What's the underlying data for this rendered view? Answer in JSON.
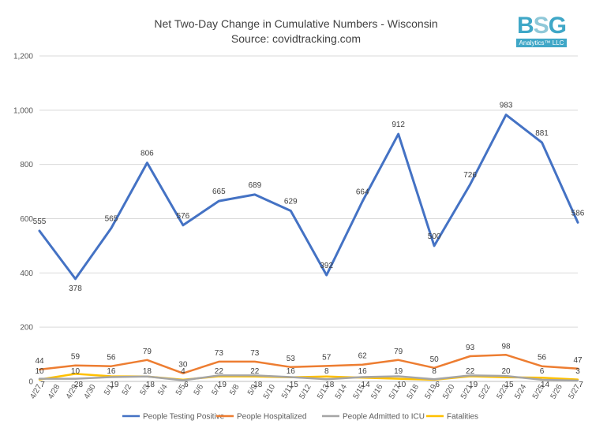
{
  "chart_data": {
    "type": "line",
    "title": "Net Two-Day Change in Cumulative Numbers - Wisconsin",
    "subtitle": "Source: covidtracking.com",
    "logo": {
      "letters": [
        "B",
        "S",
        "G"
      ],
      "letter_colors": [
        "#3fa7c7",
        "#8fc8d8",
        "#3fa7c7"
      ],
      "subtext": "Analytics™ LLC"
    },
    "categories": [
      "4/27",
      "4/28",
      "4/29",
      "4/30",
      "5/1",
      "5/2",
      "5/3",
      "5/4",
      "5/5",
      "5/6",
      "5/7",
      "5/8",
      "5/9",
      "5/10",
      "5/11",
      "5/12",
      "5/13",
      "5/14",
      "5/15",
      "5/16",
      "5/17",
      "5/18",
      "5/19",
      "5/20",
      "5/21",
      "5/22",
      "5/23",
      "5/24",
      "5/25",
      "5/26",
      "5/27"
    ],
    "ylim": [
      0,
      1200
    ],
    "yticks": [
      0,
      200,
      400,
      600,
      800,
      1000,
      1200
    ],
    "ytick_labels": [
      "0",
      "200",
      "400",
      "600",
      "800",
      "1,000",
      "1,200"
    ],
    "grid": true,
    "legend_position": "bottom",
    "series": [
      {
        "name": "People Testing Positive",
        "color": "#4472c4",
        "points": [
          {
            "x": "4/27",
            "y": 555,
            "label": "555"
          },
          {
            "x": "4/29",
            "y": 378,
            "label": "378"
          },
          {
            "x": "5/1",
            "y": 565,
            "label": "565"
          },
          {
            "x": "5/3",
            "y": 806,
            "label": "806"
          },
          {
            "x": "5/5",
            "y": 576,
            "label": "576"
          },
          {
            "x": "5/7",
            "y": 665,
            "label": "665"
          },
          {
            "x": "5/9",
            "y": 689,
            "label": "689"
          },
          {
            "x": "5/11",
            "y": 629,
            "label": "629"
          },
          {
            "x": "5/13",
            "y": 392,
            "label": "392"
          },
          {
            "x": "5/15",
            "y": 664,
            "label": "664"
          },
          {
            "x": "5/17",
            "y": 912,
            "label": "912"
          },
          {
            "x": "5/19",
            "y": 500,
            "label": "500"
          },
          {
            "x": "5/21",
            "y": 726,
            "label": "726"
          },
          {
            "x": "5/23",
            "y": 983,
            "label": "983"
          },
          {
            "x": "5/25",
            "y": 881,
            "label": "881"
          },
          {
            "x": "5/27",
            "y": 586,
            "label": "586"
          }
        ]
      },
      {
        "name": "People Hospitalized",
        "color": "#ed7d31",
        "points": [
          {
            "x": "4/27",
            "y": 44,
            "label": "44"
          },
          {
            "x": "4/29",
            "y": 59,
            "label": "59"
          },
          {
            "x": "5/1",
            "y": 56,
            "label": "56"
          },
          {
            "x": "5/3",
            "y": 79,
            "label": "79"
          },
          {
            "x": "5/5",
            "y": 30,
            "label": "30"
          },
          {
            "x": "5/7",
            "y": 73,
            "label": "73"
          },
          {
            "x": "5/9",
            "y": 73,
            "label": "73"
          },
          {
            "x": "5/11",
            "y": 53,
            "label": "53"
          },
          {
            "x": "5/13",
            "y": 57,
            "label": "57"
          },
          {
            "x": "5/15",
            "y": 62,
            "label": "62"
          },
          {
            "x": "5/17",
            "y": 79,
            "label": "79"
          },
          {
            "x": "5/19",
            "y": 50,
            "label": "50"
          },
          {
            "x": "5/21",
            "y": 93,
            "label": "93"
          },
          {
            "x": "5/23",
            "y": 98,
            "label": "98"
          },
          {
            "x": "5/25",
            "y": 56,
            "label": "56"
          },
          {
            "x": "5/27",
            "y": 47,
            "label": "47"
          }
        ]
      },
      {
        "name": "People Admitted to ICU",
        "color": "#a5a5a5",
        "points": [
          {
            "x": "4/27",
            "y": 10,
            "label": "10"
          },
          {
            "x": "4/29",
            "y": 10,
            "label": "10"
          },
          {
            "x": "5/1",
            "y": 16,
            "label": "16"
          },
          {
            "x": "5/3",
            "y": 18,
            "label": "18"
          },
          {
            "x": "5/5",
            "y": 4,
            "label": "4"
          },
          {
            "x": "5/7",
            "y": 22,
            "label": "22"
          },
          {
            "x": "5/9",
            "y": 22,
            "label": "22"
          },
          {
            "x": "5/11",
            "y": 16,
            "label": "16"
          },
          {
            "x": "5/13",
            "y": 8,
            "label": "8"
          },
          {
            "x": "5/15",
            "y": 16,
            "label": "16"
          },
          {
            "x": "5/17",
            "y": 19,
            "label": "19"
          },
          {
            "x": "5/19",
            "y": 8,
            "label": "8"
          },
          {
            "x": "5/21",
            "y": 22,
            "label": "22"
          },
          {
            "x": "5/23",
            "y": 20,
            "label": "20"
          },
          {
            "x": "5/25",
            "y": 6,
            "label": "6"
          },
          {
            "x": "5/27",
            "y": 3,
            "label": "3"
          }
        ]
      },
      {
        "name": "Fatalities",
        "color": "#ffc000",
        "points": [
          {
            "x": "4/27",
            "y": 7,
            "label": "7"
          },
          {
            "x": "4/29",
            "y": 28,
            "label": "28"
          },
          {
            "x": "5/1",
            "y": 19,
            "label": "19"
          },
          {
            "x": "5/3",
            "y": 18,
            "label": "18"
          },
          {
            "x": "5/5",
            "y": 6,
            "label": "6"
          },
          {
            "x": "5/7",
            "y": 19,
            "label": "19"
          },
          {
            "x": "5/9",
            "y": 18,
            "label": "18"
          },
          {
            "x": "5/11",
            "y": 15,
            "label": "15"
          },
          {
            "x": "5/13",
            "y": 18,
            "label": "18"
          },
          {
            "x": "5/15",
            "y": 14,
            "label": "14"
          },
          {
            "x": "5/17",
            "y": 10,
            "label": "10"
          },
          {
            "x": "5/19",
            "y": 6,
            "label": "6"
          },
          {
            "x": "5/21",
            "y": 19,
            "label": "19"
          },
          {
            "x": "5/23",
            "y": 15,
            "label": "15"
          },
          {
            "x": "5/25",
            "y": 14,
            "label": "14"
          },
          {
            "x": "5/27",
            "y": 7,
            "label": "7"
          }
        ]
      }
    ]
  }
}
